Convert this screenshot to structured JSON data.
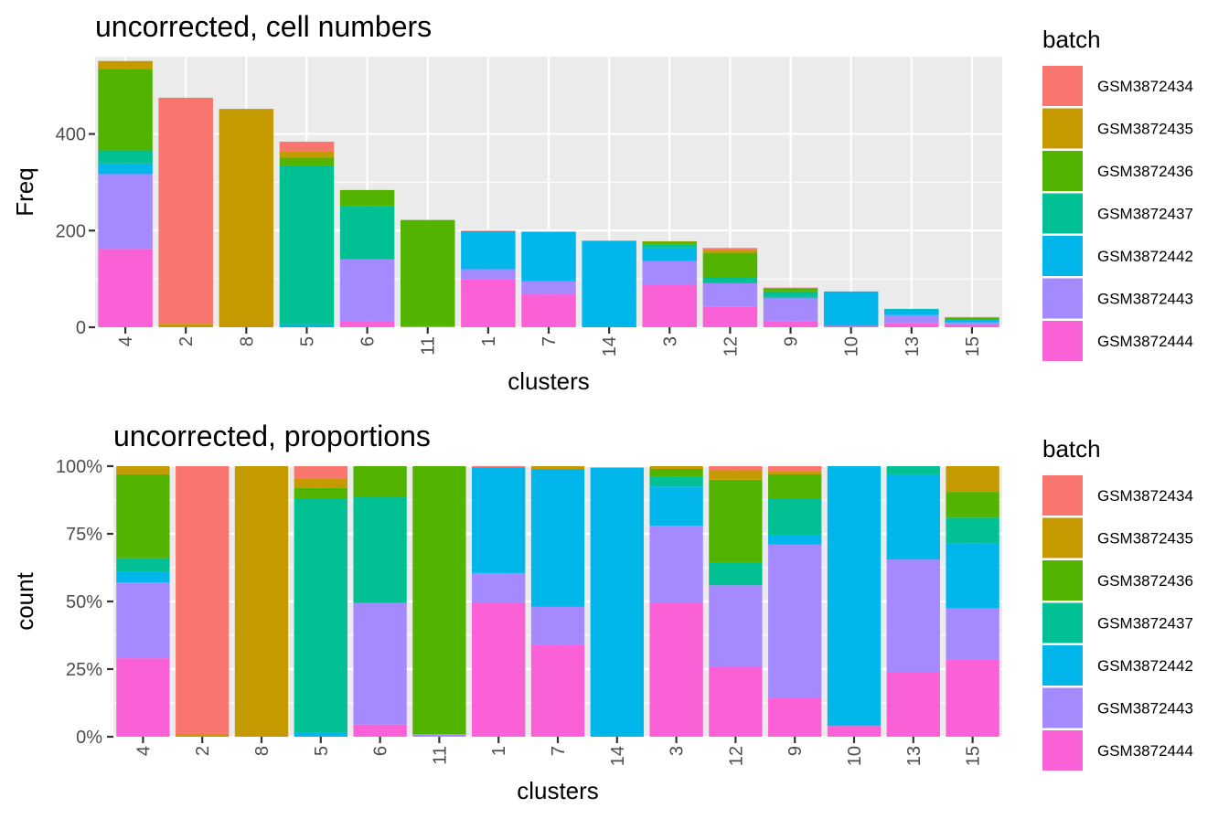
{
  "colors": {
    "GSM3872434": "#F8766D",
    "GSM3872435": "#C49A00",
    "GSM3872436": "#53B400",
    "GSM3872437": "#00C094",
    "GSM3872442": "#00B6EB",
    "GSM3872443": "#A58AFF",
    "GSM3872444": "#FB61D7",
    "panel_bg": "#EBEBEB",
    "grid": "#FFFFFF"
  },
  "chart_data": [
    {
      "type": "bar",
      "stacked": true,
      "title": "uncorrected, cell numbers",
      "xlabel": "clusters",
      "ylabel": "Freq",
      "ylim": [
        0,
        560
      ],
      "yticks": [
        0,
        200,
        400
      ],
      "ytick_labels": [
        "0",
        "200",
        "400"
      ],
      "legend_title": "batch",
      "legend_position": "right",
      "categories": [
        "4",
        "2",
        "8",
        "5",
        "6",
        "11",
        "1",
        "7",
        "14",
        "3",
        "12",
        "9",
        "10",
        "13",
        "15"
      ],
      "series": [
        {
          "name": "GSM3872444",
          "values": [
            162,
            0,
            0,
            0,
            13,
            0,
            100,
            68,
            0,
            87,
            43,
            12,
            3,
            9,
            6
          ]
        },
        {
          "name": "GSM3872443",
          "values": [
            155,
            0,
            0,
            0,
            128,
            2,
            20,
            27,
            0,
            50,
            48,
            48,
            0,
            16,
            4
          ]
        },
        {
          "name": "GSM3872442",
          "values": [
            22,
            0,
            0,
            6,
            0,
            0,
            79,
            102,
            179,
            28,
            0,
            3,
            71,
            12,
            5
          ]
        },
        {
          "name": "GSM3872437",
          "values": [
            27,
            0,
            0,
            329,
            110,
            0,
            0,
            0,
            0,
            6,
            13,
            11,
            0,
            1,
            2
          ]
        },
        {
          "name": "GSM3872436",
          "values": [
            169,
            0,
            0,
            16,
            33,
            220,
            0,
            0,
            0,
            6,
            50,
            7,
            0,
            0,
            2
          ]
        },
        {
          "name": "GSM3872435",
          "values": [
            16,
            7,
            452,
            13,
            0,
            0,
            0,
            1,
            0,
            1,
            5,
            0,
            0,
            0,
            2
          ]
        },
        {
          "name": "GSM3872434",
          "values": [
            0,
            468,
            0,
            20,
            0,
            0,
            1,
            0,
            0,
            0,
            5,
            1,
            0,
            0,
            0
          ]
        }
      ]
    },
    {
      "type": "bar",
      "stacked": true,
      "normalized": true,
      "title": "uncorrected, proportions",
      "xlabel": "clusters",
      "ylabel": "count",
      "ylim": [
        0,
        1
      ],
      "yticks": [
        0,
        0.25,
        0.5,
        0.75,
        1
      ],
      "ytick_labels": [
        "0%",
        "25%",
        "50%",
        "75%",
        "100%"
      ],
      "legend_title": "batch",
      "legend_position": "right",
      "categories": [
        "4",
        "2",
        "8",
        "5",
        "6",
        "11",
        "1",
        "7",
        "14",
        "3",
        "12",
        "9",
        "10",
        "13",
        "15"
      ],
      "series": [
        {
          "name": "GSM3872444",
          "values": [
            0.29,
            0,
            0,
            0,
            0.045,
            0,
            0.495,
            0.34,
            0,
            0.495,
            0.26,
            0.145,
            0.04,
            0.24,
            0.285
          ]
        },
        {
          "name": "GSM3872443",
          "values": [
            0.28,
            0,
            0,
            0,
            0.45,
            0.01,
            0.11,
            0.14,
            0,
            0.285,
            0.3,
            0.565,
            0,
            0.415,
            0.19
          ]
        },
        {
          "name": "GSM3872442",
          "values": [
            0.04,
            0,
            0,
            0.015,
            0,
            0,
            0.39,
            0.51,
            0.995,
            0.145,
            0,
            0.035,
            0.96,
            0.315,
            0.24
          ]
        },
        {
          "name": "GSM3872437",
          "values": [
            0.05,
            0,
            0,
            0.865,
            0.39,
            0,
            0,
            0,
            0,
            0.035,
            0.085,
            0.135,
            0,
            0.03,
            0.095
          ]
        },
        {
          "name": "GSM3872436",
          "values": [
            0.31,
            0,
            0,
            0.04,
            0.115,
            0.99,
            0,
            0,
            0,
            0.03,
            0.305,
            0.09,
            0,
            0,
            0.095
          ]
        },
        {
          "name": "GSM3872435",
          "values": [
            0.03,
            0.01,
            1.0,
            0.035,
            0,
            0,
            0,
            0.01,
            0,
            0.01,
            0.035,
            0.01,
            0,
            0,
            0.095
          ]
        },
        {
          "name": "GSM3872434",
          "values": [
            0,
            0.99,
            0,
            0.045,
            0,
            0,
            0.005,
            0,
            0,
            0,
            0.015,
            0.02,
            0,
            0,
            0
          ]
        }
      ]
    }
  ]
}
